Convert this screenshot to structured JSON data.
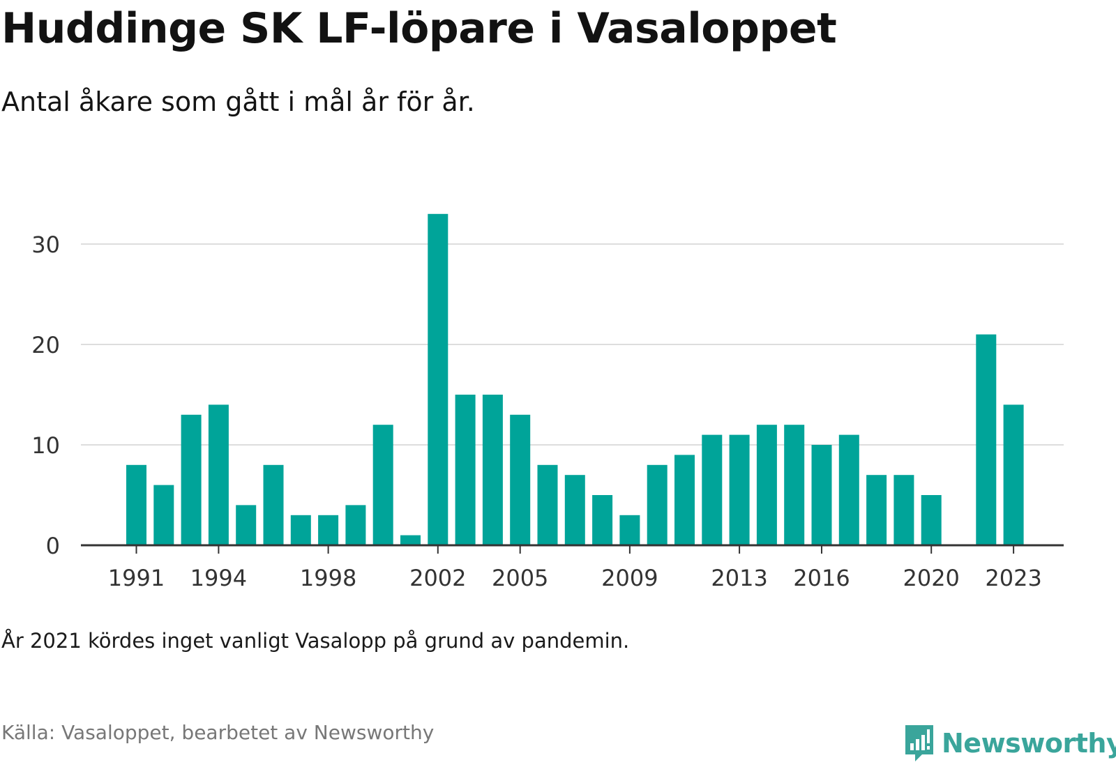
{
  "header": {
    "title": "Huddinge SK LF-löpare i Vasaloppet",
    "subtitle": "Antal åkare som gått i mål år för år."
  },
  "footer": {
    "note": "År 2021 kördes inget vanligt Vasalopp på grund av pandemin.",
    "source": "Källa: Vasaloppet, bearbetet av Newsworthy",
    "brand": "Newsworthy"
  },
  "colors": {
    "bar": "#00a499",
    "grid": "#dddddd",
    "axis": "#333333",
    "brand": "#3aa59b"
  },
  "chart_data": {
    "type": "bar",
    "categories": [
      "1991",
      "1992",
      "1993",
      "1994",
      "1995",
      "1996",
      "1997",
      "1998",
      "1999",
      "2000",
      "2001",
      "2002",
      "2003",
      "2004",
      "2005",
      "2006",
      "2007",
      "2008",
      "2009",
      "2010",
      "2011",
      "2012",
      "2013",
      "2014",
      "2015",
      "2016",
      "2017",
      "2018",
      "2019",
      "2020",
      "2021",
      "2022",
      "2023"
    ],
    "values": [
      8,
      6,
      13,
      14,
      4,
      8,
      3,
      3,
      4,
      12,
      1,
      33,
      15,
      15,
      13,
      8,
      7,
      5,
      3,
      8,
      9,
      11,
      11,
      12,
      12,
      10,
      11,
      7,
      7,
      5,
      null,
      21,
      14
    ],
    "x_tick_labels": [
      "1991",
      "1994",
      "1998",
      "2002",
      "2005",
      "2009",
      "2013",
      "2016",
      "2020",
      "2023"
    ],
    "y_ticks": [
      0,
      10,
      20,
      30
    ],
    "ylim": [
      0,
      33
    ],
    "grid": true,
    "legend": "none"
  }
}
